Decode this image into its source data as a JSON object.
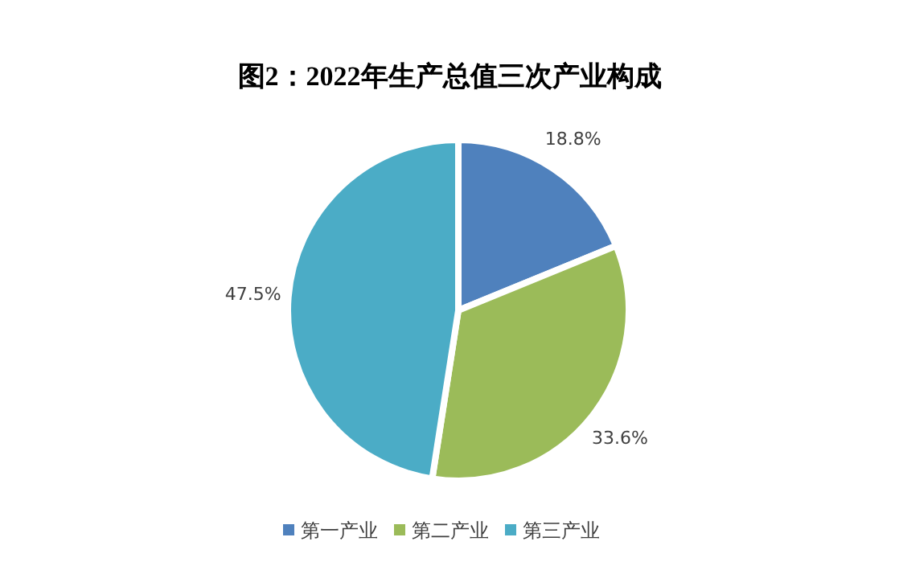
{
  "chart_data": {
    "type": "pie",
    "title": "图2：2022年生产总值三次产业构成",
    "categories": [
      "第一产业",
      "第二产业",
      "第三产业"
    ],
    "values": [
      18.8,
      33.6,
      47.5
    ],
    "colors": [
      "#4f81bd",
      "#9bbb59",
      "#4bacc6"
    ],
    "value_labels": [
      "18.8%",
      "33.6%",
      "47.5%"
    ],
    "legend": "bottom"
  }
}
